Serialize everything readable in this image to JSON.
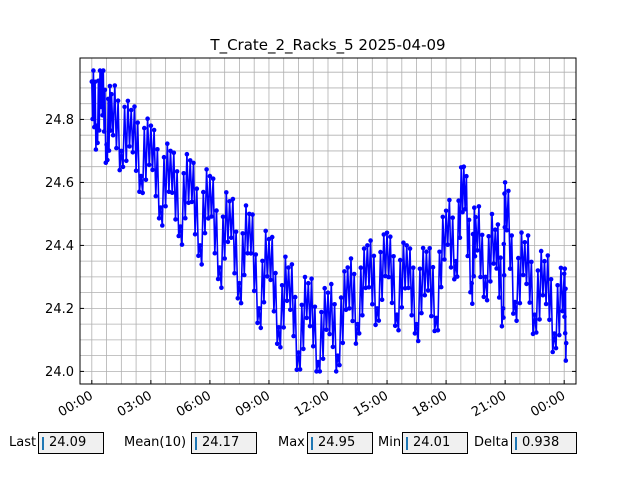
{
  "chart_data": {
    "type": "line",
    "title": "T_Crate_2_Racks_5 2025-04-09",
    "xlabel": "",
    "ylabel": "",
    "x_ticks": [
      "00:00",
      "03:00",
      "06:00",
      "09:00",
      "12:00",
      "15:00",
      "18:00",
      "21:00",
      "00:00"
    ],
    "x_range_hours": [
      -0.6,
      24.6
    ],
    "y_ticks": [
      "24.0",
      "24.2",
      "24.4",
      "24.6",
      "24.8"
    ],
    "ylim": [
      23.96,
      24.995
    ],
    "grid": true,
    "marker": "circle",
    "color": "#0000ff",
    "series": [
      {
        "points": [
          [
            0.0,
            24.92
          ],
          [
            0.25,
            24.78
          ],
          [
            0.5,
            24.95
          ],
          [
            0.75,
            24.72
          ],
          [
            1.0,
            24.88
          ],
          [
            1.5,
            24.7
          ],
          [
            2.0,
            24.83
          ],
          [
            2.5,
            24.62
          ],
          [
            3.0,
            24.78
          ],
          [
            3.5,
            24.52
          ],
          [
            4.0,
            24.7
          ],
          [
            4.5,
            24.46
          ],
          [
            5.0,
            24.67
          ],
          [
            5.5,
            24.4
          ],
          [
            6.0,
            24.62
          ],
          [
            6.5,
            24.33
          ],
          [
            7.0,
            24.54
          ],
          [
            7.5,
            24.28
          ],
          [
            8.0,
            24.5
          ],
          [
            8.5,
            24.2
          ],
          [
            9.0,
            24.42
          ],
          [
            9.5,
            24.14
          ],
          [
            10.0,
            24.33
          ],
          [
            10.5,
            24.06
          ],
          [
            11.0,
            24.28
          ],
          [
            11.5,
            24.03
          ],
          [
            12.0,
            24.25
          ],
          [
            12.5,
            24.05
          ],
          [
            13.0,
            24.33
          ],
          [
            13.5,
            24.15
          ],
          [
            14.0,
            24.4
          ],
          [
            14.5,
            24.2
          ],
          [
            15.0,
            24.44
          ],
          [
            15.5,
            24.18
          ],
          [
            16.0,
            24.4
          ],
          [
            16.5,
            24.15
          ],
          [
            17.0,
            24.38
          ],
          [
            17.5,
            24.17
          ],
          [
            18.0,
            24.51
          ],
          [
            18.5,
            24.35
          ],
          [
            18.9,
            24.65
          ],
          [
            19.3,
            24.28
          ],
          [
            19.5,
            24.49
          ],
          [
            20.0,
            24.3
          ],
          [
            20.5,
            24.45
          ],
          [
            20.9,
            24.2
          ],
          [
            21.0,
            24.6
          ],
          [
            21.5,
            24.22
          ],
          [
            22.0,
            24.41
          ],
          [
            22.5,
            24.18
          ],
          [
            23.0,
            24.35
          ],
          [
            23.5,
            24.12
          ],
          [
            24.0,
            24.31
          ],
          [
            24.1,
            24.09
          ]
        ]
      }
    ]
  },
  "stats": {
    "last_label": "Last",
    "last_value": "24.09",
    "mean_label": "Mean(10)",
    "mean_value": "24.17",
    "max_label": "Max",
    "max_value": "24.95",
    "min_label": "Min",
    "min_value": "24.01",
    "delta_label": "Delta",
    "delta_value": "0.938"
  }
}
